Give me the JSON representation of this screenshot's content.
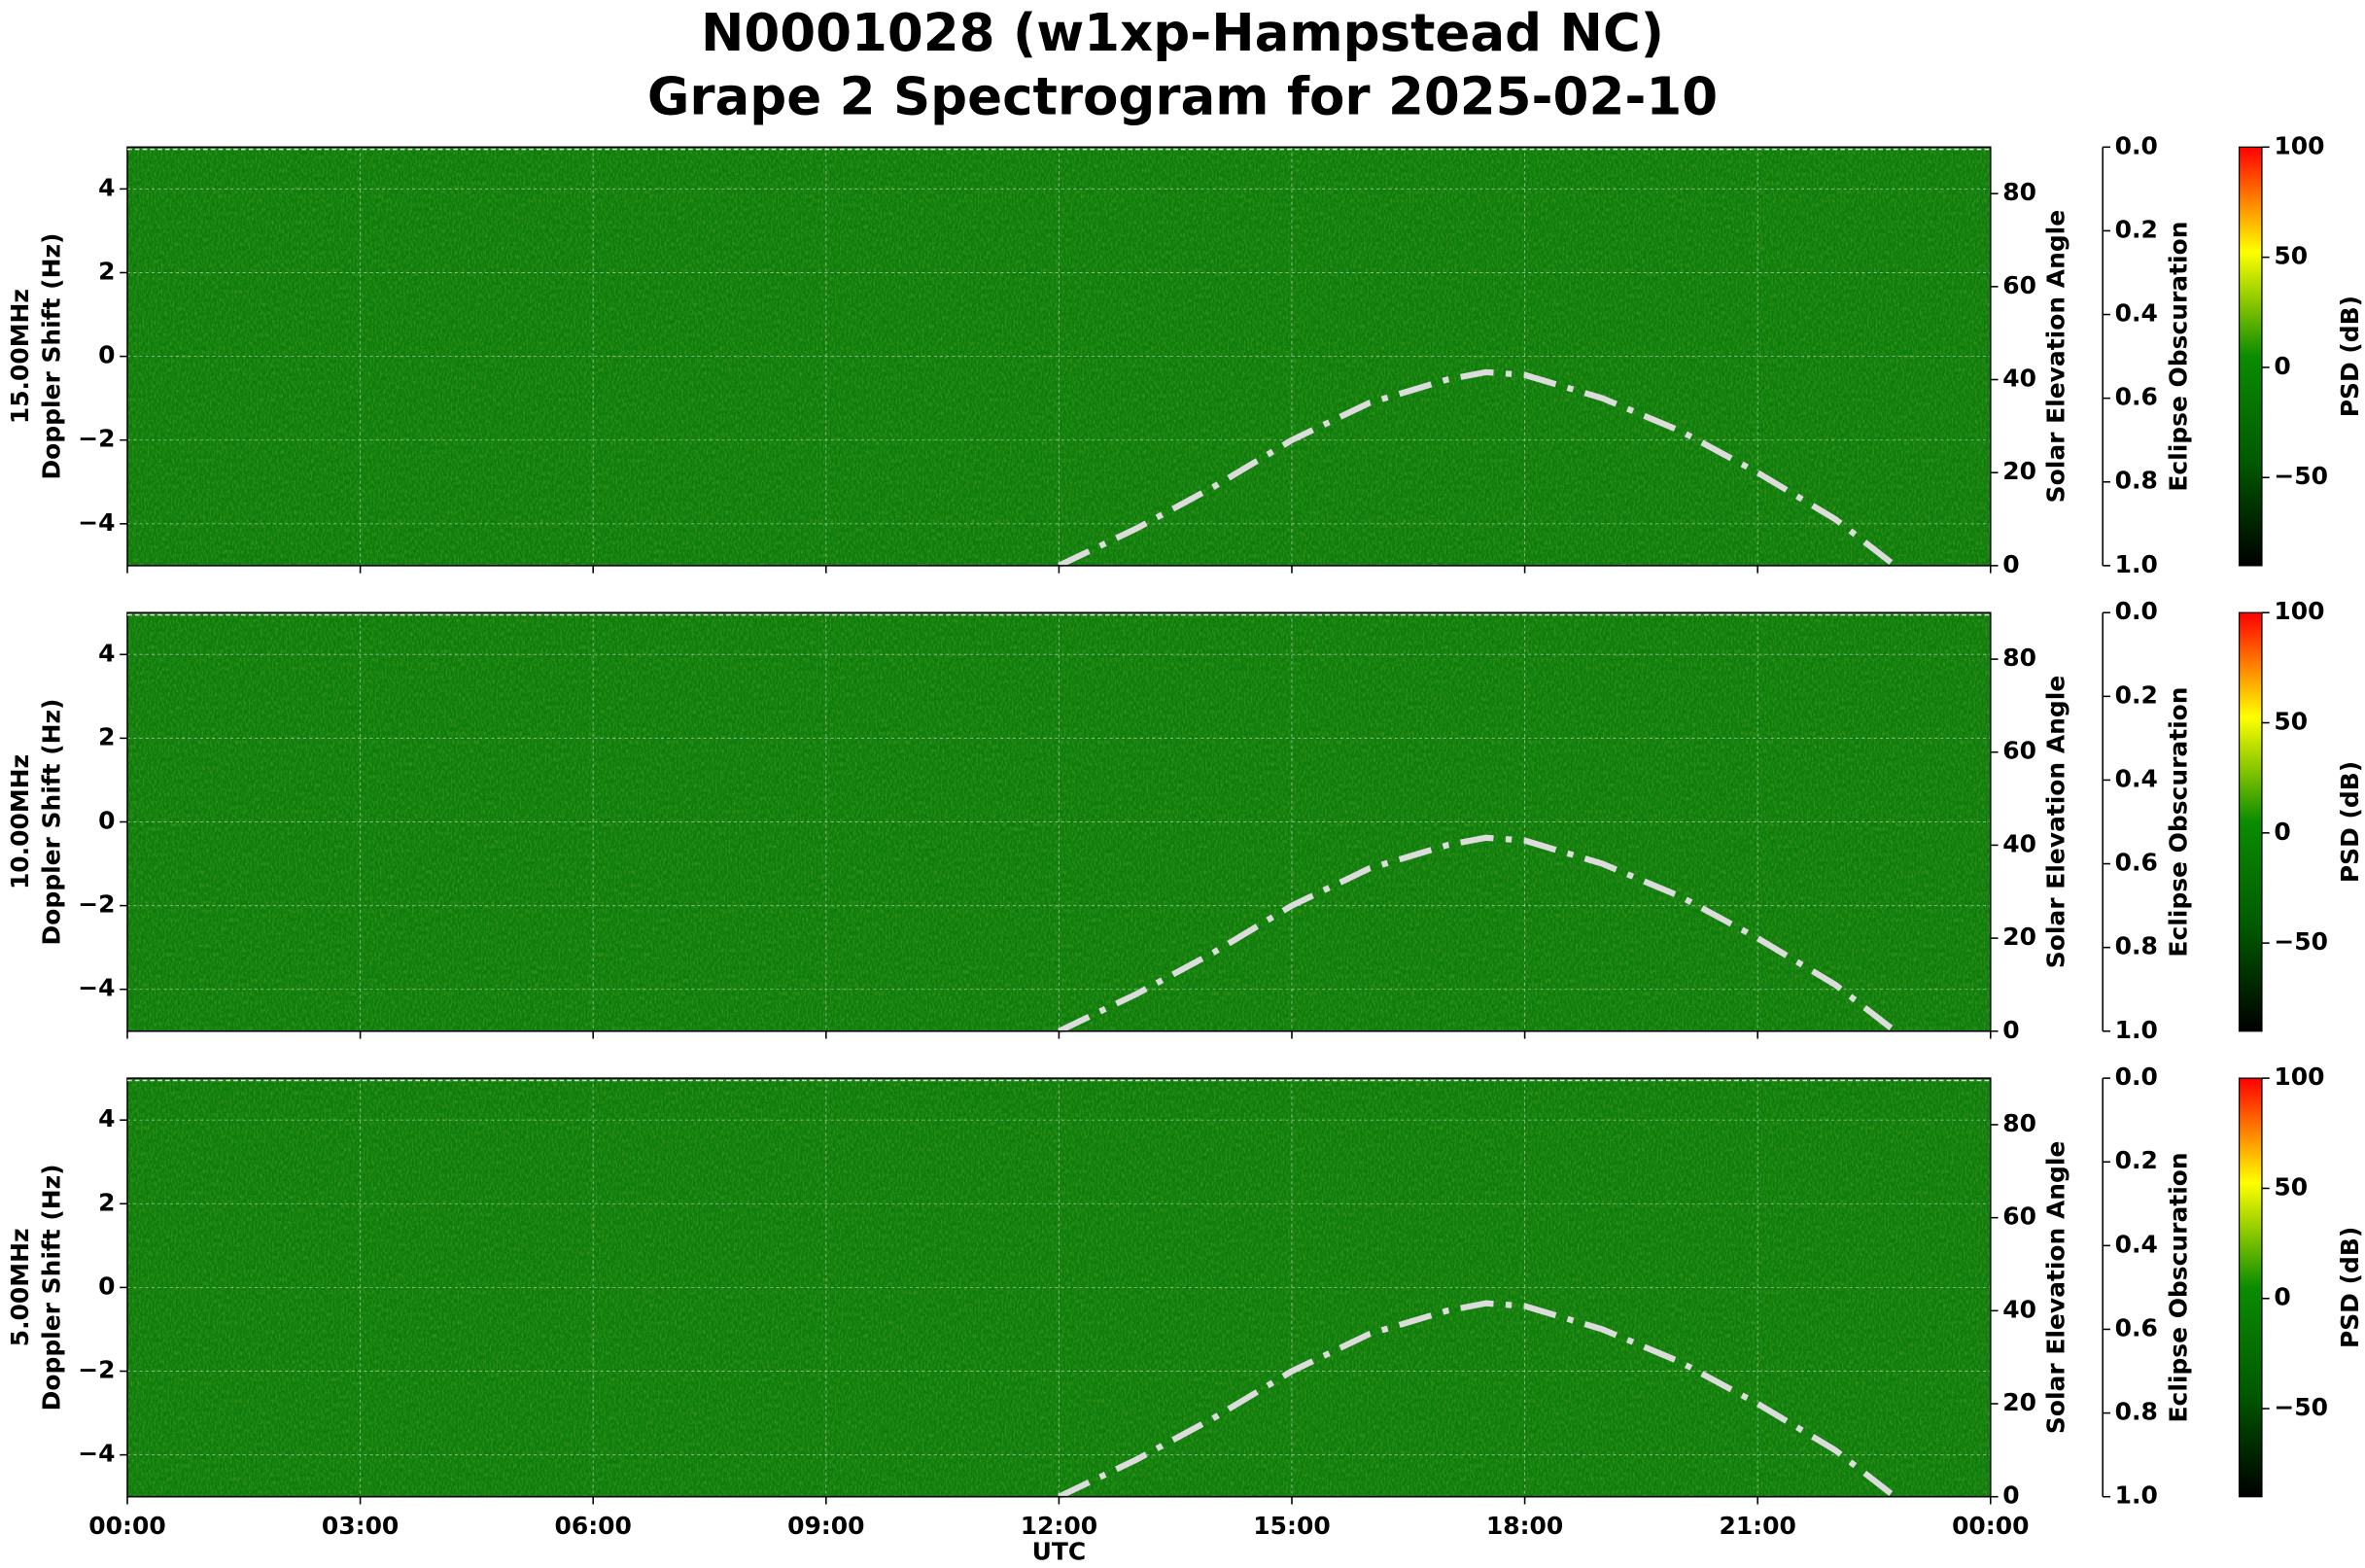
{
  "figure_title": [
    "N0001028 (w1xp-Hampstead NC)",
    "Grape 2 Spectrogram for 2025-02-10"
  ],
  "chart_data": [
    {
      "type": "spectrogram",
      "frequency_label": "15.00MHz",
      "ylabel": "Doppler Shift (Hz)",
      "ylim": [
        -5,
        5
      ],
      "yticks": [
        {
          "value": -4,
          "label": "−4"
        },
        {
          "value": -2,
          "label": "−2"
        },
        0,
        2,
        4
      ],
      "y2label": "Solar Elevation Angle",
      "y2lim": [
        0,
        90
      ],
      "y2ticks": [
        0,
        20,
        40,
        60,
        80
      ],
      "solar_elevation": {
        "axis": "y2",
        "color": "#dcdcdc",
        "x": [
          12,
          13,
          14,
          15,
          16,
          17,
          17.5,
          18,
          19,
          20,
          21,
          22,
          22.77
        ],
        "values": [
          0,
          8,
          17,
          27,
          35,
          40,
          41.6,
          41,
          36,
          29,
          20,
          10,
          0
        ]
      },
      "y3label": "Eclipse Obscuration",
      "y3lim": [
        1,
        0
      ],
      "y3ticks": [
        {
          "value": 0,
          "label": "0.0"
        },
        0.2,
        0.4,
        0.6,
        0.8,
        {
          "value": 1,
          "label": "1.0"
        }
      ],
      "colorbar": {
        "label": "PSD (dB)",
        "lim": [
          -90,
          100
        ],
        "ticks": [
          {
            "value": -50,
            "label": "−50"
          },
          0,
          50,
          100
        ],
        "colors": [
          "#000000",
          "#005a00",
          "#0b8c00",
          "#ffff00",
          "#ff0000"
        ]
      },
      "grid": true
    },
    {
      "type": "spectrogram",
      "frequency_label": "10.00MHz",
      "ylabel": "Doppler Shift (Hz)",
      "ylim": [
        -5,
        5
      ],
      "yticks": [
        {
          "value": -4,
          "label": "−4"
        },
        {
          "value": -2,
          "label": "−2"
        },
        0,
        2,
        4
      ],
      "y2label": "Solar Elevation Angle",
      "y2lim": [
        0,
        90
      ],
      "y2ticks": [
        0,
        20,
        40,
        60,
        80
      ],
      "solar_elevation": {
        "axis": "y2",
        "color": "#dcdcdc",
        "x": [
          12,
          13,
          14,
          15,
          16,
          17,
          17.5,
          18,
          19,
          20,
          21,
          22,
          22.77
        ],
        "values": [
          0,
          8,
          17,
          27,
          35,
          40,
          41.6,
          41,
          36,
          29,
          20,
          10,
          0
        ]
      },
      "y3label": "Eclipse Obscuration",
      "y3lim": [
        1,
        0
      ],
      "y3ticks": [
        {
          "value": 0,
          "label": "0.0"
        },
        0.2,
        0.4,
        0.6,
        0.8,
        {
          "value": 1,
          "label": "1.0"
        }
      ],
      "colorbar": {
        "label": "PSD (dB)",
        "lim": [
          -90,
          100
        ],
        "ticks": [
          {
            "value": -50,
            "label": "−50"
          },
          0,
          50,
          100
        ],
        "colors": [
          "#000000",
          "#005a00",
          "#0b8c00",
          "#ffff00",
          "#ff0000"
        ]
      },
      "grid": true
    },
    {
      "type": "spectrogram",
      "frequency_label": "5.00MHz",
      "ylabel": "Doppler Shift (Hz)",
      "ylim": [
        -5,
        5
      ],
      "yticks": [
        {
          "value": -4,
          "label": "−4"
        },
        {
          "value": -2,
          "label": "−2"
        },
        0,
        2,
        4
      ],
      "y2label": "Solar Elevation Angle",
      "y2lim": [
        0,
        90
      ],
      "y2ticks": [
        0,
        20,
        40,
        60,
        80
      ],
      "solar_elevation": {
        "axis": "y2",
        "color": "#dcdcdc",
        "x": [
          12,
          13,
          14,
          15,
          16,
          17,
          17.5,
          18,
          19,
          20,
          21,
          22,
          22.77
        ],
        "values": [
          0,
          8,
          17,
          27,
          35,
          40,
          41.6,
          41,
          36,
          29,
          20,
          10,
          0
        ]
      },
      "y3label": "Eclipse Obscuration",
      "y3lim": [
        1,
        0
      ],
      "y3ticks": [
        {
          "value": 0,
          "label": "0.0"
        },
        0.2,
        0.4,
        0.6,
        0.8,
        {
          "value": 1,
          "label": "1.0"
        }
      ],
      "colorbar": {
        "label": "PSD (dB)",
        "lim": [
          -90,
          100
        ],
        "ticks": [
          {
            "value": -50,
            "label": "−50"
          },
          0,
          50,
          100
        ],
        "colors": [
          "#000000",
          "#005a00",
          "#0b8c00",
          "#ffff00",
          "#ff0000"
        ]
      },
      "xlabel": "UTC",
      "xlim": [
        0,
        24
      ],
      "xticks": [
        {
          "value": 0,
          "label": "00:00"
        },
        {
          "value": 3,
          "label": "03:00"
        },
        {
          "value": 6,
          "label": "06:00"
        },
        {
          "value": 9,
          "label": "09:00"
        },
        {
          "value": 12,
          "label": "12:00"
        },
        {
          "value": 15,
          "label": "15:00"
        },
        {
          "value": 18,
          "label": "18:00"
        },
        {
          "value": 21,
          "label": "21:00"
        },
        {
          "value": 24,
          "label": "00:00"
        }
      ],
      "grid": true
    }
  ]
}
